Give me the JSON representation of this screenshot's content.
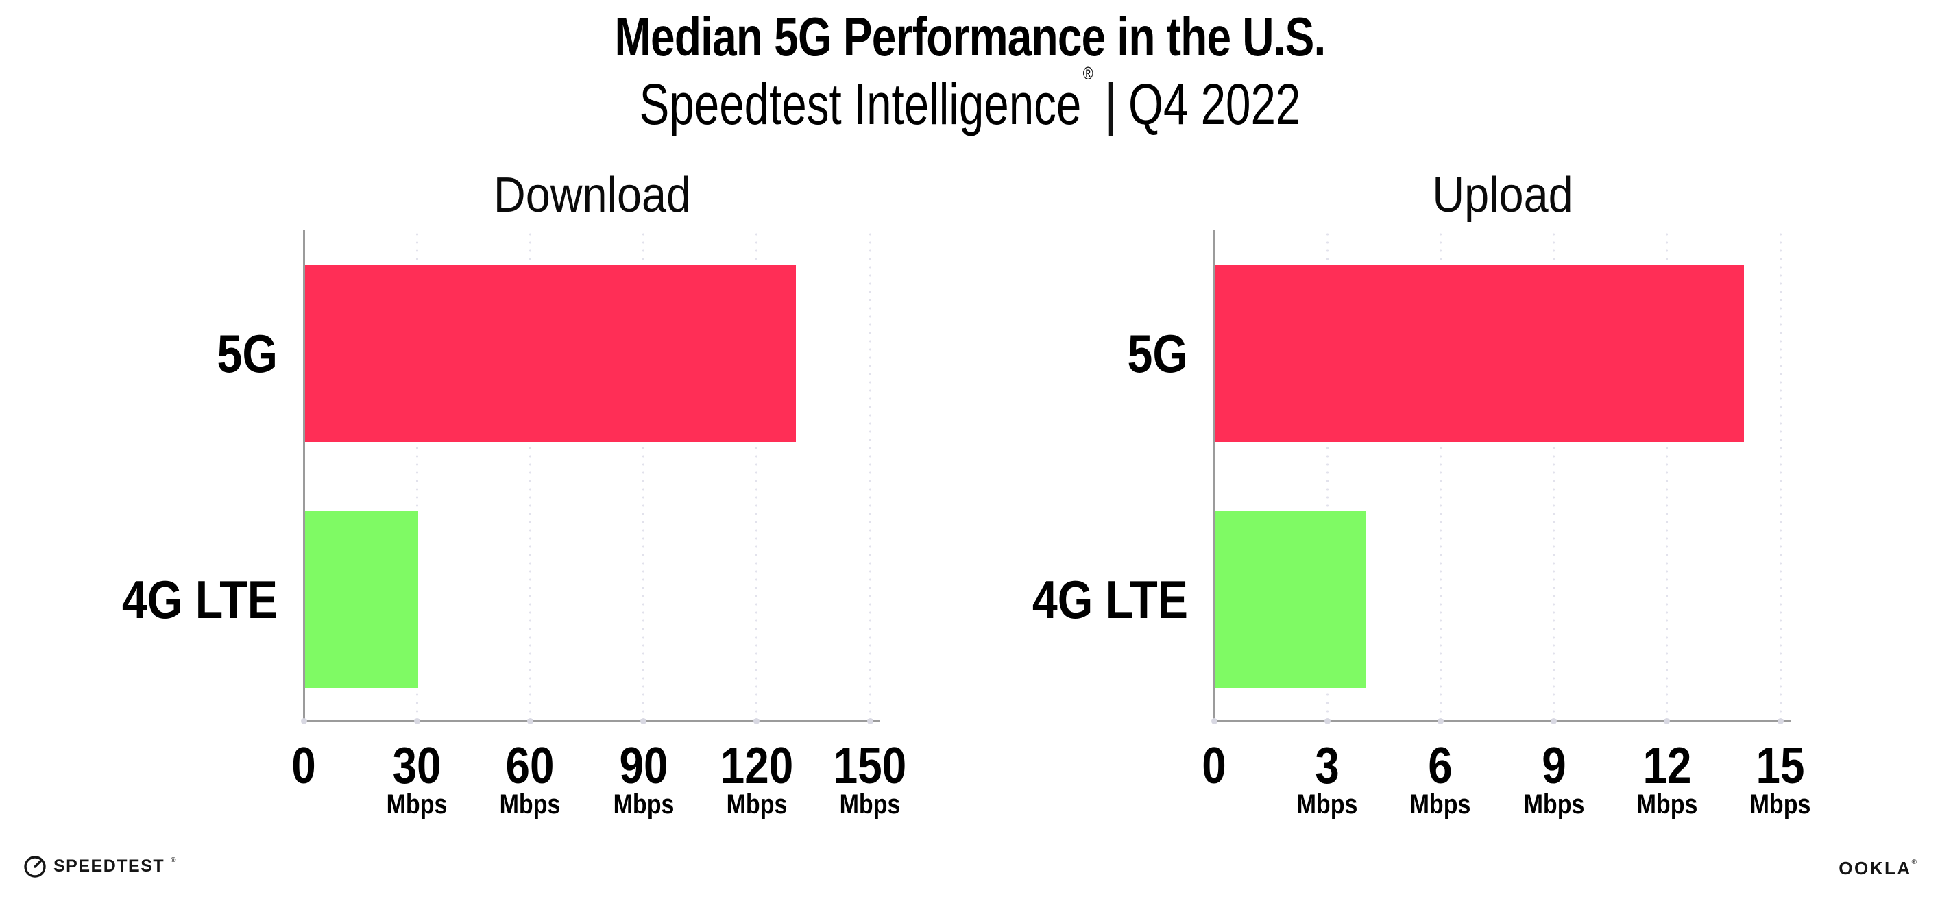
{
  "header": {
    "title": "Median 5G Performance in the U.S.",
    "subtitle_brand": "Speedtest Intelligence",
    "subtitle_reg": "®",
    "subtitle_sep": "|",
    "subtitle_period": "Q4 2022"
  },
  "colors": {
    "bar_5g": "#FF2E56",
    "bar_4g_lte": "#7FFA64",
    "axis": "#9B9B9B",
    "grid_dot": "#E2E2EC",
    "tick_dot": "#D8D8E2",
    "text": "#000000",
    "background": "#FFFFFF"
  },
  "chart_data": [
    {
      "type": "bar",
      "orientation": "horizontal",
      "title": "Download",
      "categories": [
        "5G",
        "4G LTE"
      ],
      "values": [
        130,
        30
      ],
      "unit": "Mbps",
      "xlim": [
        0,
        150
      ],
      "xticks": [
        0,
        30,
        60,
        90,
        120,
        150
      ],
      "bar_colors": [
        "#FF2E56",
        "#7FFA64"
      ],
      "grid": "dotted-vertical",
      "legend": "none"
    },
    {
      "type": "bar",
      "orientation": "horizontal",
      "title": "Upload",
      "categories": [
        "5G",
        "4G LTE"
      ],
      "values": [
        14,
        4
      ],
      "unit": "Mbps",
      "xlim": [
        0,
        15
      ],
      "xticks": [
        0,
        3,
        6,
        9,
        12,
        15
      ],
      "bar_colors": [
        "#FF2E56",
        "#7FFA64"
      ],
      "grid": "dotted-vertical",
      "legend": "none"
    }
  ],
  "footer": {
    "speedtest_label": "SPEEDTEST",
    "speedtest_reg": "®",
    "ookla_label": "OOKLA",
    "ookla_reg": "®"
  }
}
